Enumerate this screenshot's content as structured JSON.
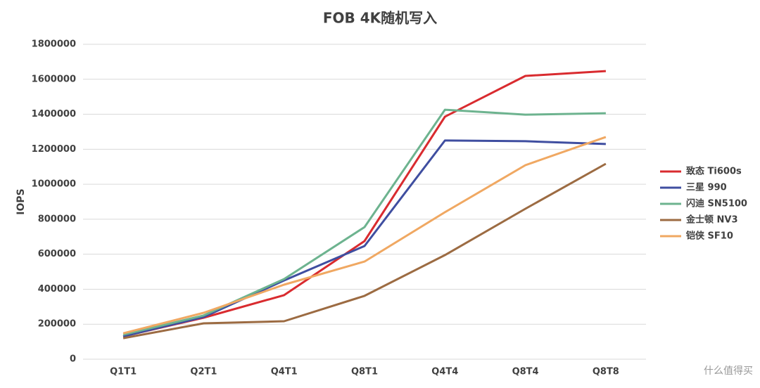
{
  "chart_data": {
    "type": "line",
    "title": "FOB 4K随机写入",
    "y_label": "IOPS",
    "categories": [
      "Q1T1",
      "Q2T1",
      "Q4T1",
      "Q8T1",
      "Q4T4",
      "Q8T4",
      "Q8T8"
    ],
    "series": [
      {
        "name": "致态 Ti600s",
        "color": "#d92b2f",
        "values": [
          130000,
          237000,
          366000,
          675000,
          1386000,
          1619000,
          1647000
        ]
      },
      {
        "name": "三星 990",
        "color": "#3f4ea0",
        "values": [
          130000,
          241000,
          450000,
          647000,
          1250000,
          1246000,
          1230000
        ]
      },
      {
        "name": "闪迪 SN5100",
        "color": "#6db38f",
        "values": [
          140000,
          250000,
          458000,
          755000,
          1426000,
          1398000,
          1406000
        ]
      },
      {
        "name": "金士顿 NV3",
        "color": "#9c6b42",
        "values": [
          120000,
          205000,
          217000,
          362000,
          595000,
          860000,
          1117000
        ]
      },
      {
        "name": "铠侠 SF10",
        "color": "#f0a862",
        "values": [
          148000,
          265000,
          426000,
          558000,
          840000,
          1109000,
          1270000
        ]
      }
    ],
    "ylim": [
      0,
      1800000
    ],
    "yticks": [
      0,
      200000,
      400000,
      600000,
      800000,
      1000000,
      1200000,
      1400000,
      1600000,
      1800000
    ],
    "grid": true,
    "legend": "right",
    "watermark": "什么值得买"
  }
}
